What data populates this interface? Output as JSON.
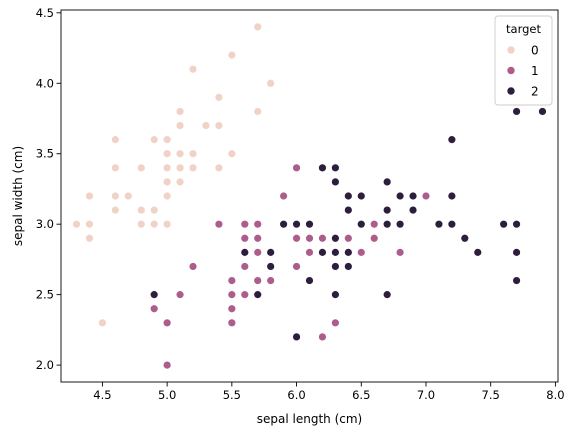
{
  "chart_data": {
    "type": "scatter",
    "title": "",
    "xlabel": "sepal length (cm)",
    "ylabel": "sepal width (cm)",
    "xlim": [
      4.18,
      8.02
    ],
    "ylim": [
      1.88,
      4.52
    ],
    "xticks": [
      "4.5",
      "5.0",
      "5.5",
      "6.0",
      "6.5",
      "7.0",
      "7.5",
      "8.0"
    ],
    "yticks": [
      "2.0",
      "2.5",
      "3.0",
      "3.5",
      "4.0",
      "4.5"
    ],
    "grid": false,
    "legend": {
      "title": "target",
      "placement": "top-right"
    },
    "series": [
      {
        "name": "0",
        "color": "#f0d2c6",
        "points": [
          [
            5.1,
            3.5
          ],
          [
            4.9,
            3.0
          ],
          [
            4.7,
            3.2
          ],
          [
            4.6,
            3.1
          ],
          [
            5.0,
            3.6
          ],
          [
            5.4,
            3.9
          ],
          [
            4.6,
            3.4
          ],
          [
            5.0,
            3.4
          ],
          [
            4.4,
            2.9
          ],
          [
            4.9,
            3.1
          ],
          [
            5.4,
            3.7
          ],
          [
            4.8,
            3.4
          ],
          [
            4.8,
            3.0
          ],
          [
            4.3,
            3.0
          ],
          [
            5.8,
            4.0
          ],
          [
            5.7,
            4.4
          ],
          [
            5.4,
            3.9
          ],
          [
            5.1,
            3.5
          ],
          [
            5.7,
            3.8
          ],
          [
            5.1,
            3.8
          ],
          [
            5.4,
            3.4
          ],
          [
            5.1,
            3.7
          ],
          [
            4.6,
            3.6
          ],
          [
            5.1,
            3.3
          ],
          [
            4.8,
            3.4
          ],
          [
            5.0,
            3.0
          ],
          [
            5.0,
            3.4
          ],
          [
            5.2,
            3.5
          ],
          [
            5.2,
            3.4
          ],
          [
            4.7,
            3.2
          ],
          [
            4.8,
            3.1
          ],
          [
            5.4,
            3.4
          ],
          [
            5.2,
            4.1
          ],
          [
            5.5,
            4.2
          ],
          [
            4.9,
            3.1
          ],
          [
            5.0,
            3.2
          ],
          [
            5.5,
            3.5
          ],
          [
            4.9,
            3.6
          ],
          [
            4.4,
            3.0
          ],
          [
            5.1,
            3.4
          ],
          [
            5.0,
            3.5
          ],
          [
            4.5,
            2.3
          ],
          [
            4.4,
            3.2
          ],
          [
            5.0,
            3.5
          ],
          [
            5.1,
            3.8
          ],
          [
            4.8,
            3.0
          ],
          [
            5.1,
            3.8
          ],
          [
            4.6,
            3.2
          ],
          [
            5.3,
            3.7
          ],
          [
            5.0,
            3.3
          ]
        ]
      },
      {
        "name": "1",
        "color": "#ad5d8c",
        "points": [
          [
            7.0,
            3.2
          ],
          [
            6.4,
            3.2
          ],
          [
            6.9,
            3.1
          ],
          [
            5.5,
            2.3
          ],
          [
            6.5,
            2.8
          ],
          [
            5.7,
            2.8
          ],
          [
            6.3,
            3.3
          ],
          [
            4.9,
            2.4
          ],
          [
            6.6,
            2.9
          ],
          [
            5.2,
            2.7
          ],
          [
            5.0,
            2.0
          ],
          [
            5.9,
            3.0
          ],
          [
            6.0,
            2.2
          ],
          [
            6.1,
            2.9
          ],
          [
            5.6,
            2.9
          ],
          [
            6.7,
            3.1
          ],
          [
            5.6,
            3.0
          ],
          [
            5.8,
            2.7
          ],
          [
            6.2,
            2.2
          ],
          [
            5.6,
            2.5
          ],
          [
            5.9,
            3.2
          ],
          [
            6.1,
            2.8
          ],
          [
            6.3,
            2.5
          ],
          [
            6.1,
            2.8
          ],
          [
            6.4,
            2.9
          ],
          [
            6.6,
            3.0
          ],
          [
            6.8,
            2.8
          ],
          [
            6.7,
            3.0
          ],
          [
            6.0,
            2.9
          ],
          [
            5.7,
            2.6
          ],
          [
            5.5,
            2.4
          ],
          [
            5.5,
            2.4
          ],
          [
            5.8,
            2.7
          ],
          [
            6.0,
            2.7
          ],
          [
            5.4,
            3.0
          ],
          [
            6.0,
            3.4
          ],
          [
            6.7,
            3.1
          ],
          [
            6.3,
            2.3
          ],
          [
            5.6,
            3.0
          ],
          [
            5.5,
            2.5
          ],
          [
            5.5,
            2.6
          ],
          [
            6.1,
            3.0
          ],
          [
            5.8,
            2.6
          ],
          [
            5.0,
            2.3
          ],
          [
            5.6,
            2.7
          ],
          [
            5.7,
            3.0
          ],
          [
            5.7,
            2.9
          ],
          [
            6.2,
            2.9
          ],
          [
            5.1,
            2.5
          ],
          [
            5.7,
            2.8
          ]
        ]
      },
      {
        "name": "2",
        "color": "#2d1e3e",
        "points": [
          [
            6.3,
            3.3
          ],
          [
            5.8,
            2.7
          ],
          [
            7.1,
            3.0
          ],
          [
            6.3,
            2.9
          ],
          [
            6.5,
            3.0
          ],
          [
            7.6,
            3.0
          ],
          [
            4.9,
            2.5
          ],
          [
            7.3,
            2.9
          ],
          [
            6.7,
            2.5
          ],
          [
            7.2,
            3.6
          ],
          [
            6.5,
            3.2
          ],
          [
            6.4,
            2.7
          ],
          [
            6.8,
            3.0
          ],
          [
            5.7,
            2.5
          ],
          [
            5.8,
            2.8
          ],
          [
            6.4,
            3.2
          ],
          [
            6.5,
            3.0
          ],
          [
            7.7,
            3.8
          ],
          [
            7.7,
            2.6
          ],
          [
            6.0,
            2.2
          ],
          [
            6.9,
            3.2
          ],
          [
            5.6,
            2.8
          ],
          [
            7.7,
            2.8
          ],
          [
            6.3,
            2.7
          ],
          [
            6.7,
            3.3
          ],
          [
            7.2,
            3.2
          ],
          [
            6.2,
            2.8
          ],
          [
            6.1,
            3.0
          ],
          [
            6.4,
            2.8
          ],
          [
            7.2,
            3.0
          ],
          [
            7.4,
            2.8
          ],
          [
            7.9,
            3.8
          ],
          [
            6.4,
            2.8
          ],
          [
            6.3,
            2.8
          ],
          [
            6.1,
            2.6
          ],
          [
            7.7,
            3.0
          ],
          [
            6.3,
            3.4
          ],
          [
            6.4,
            3.1
          ],
          [
            6.0,
            3.0
          ],
          [
            6.9,
            3.1
          ],
          [
            6.7,
            3.1
          ],
          [
            6.9,
            3.1
          ],
          [
            5.8,
            2.7
          ],
          [
            6.8,
            3.2
          ],
          [
            6.7,
            3.3
          ],
          [
            6.7,
            3.0
          ],
          [
            6.3,
            2.5
          ],
          [
            6.5,
            3.0
          ],
          [
            6.2,
            3.4
          ],
          [
            5.9,
            3.0
          ]
        ]
      }
    ]
  }
}
